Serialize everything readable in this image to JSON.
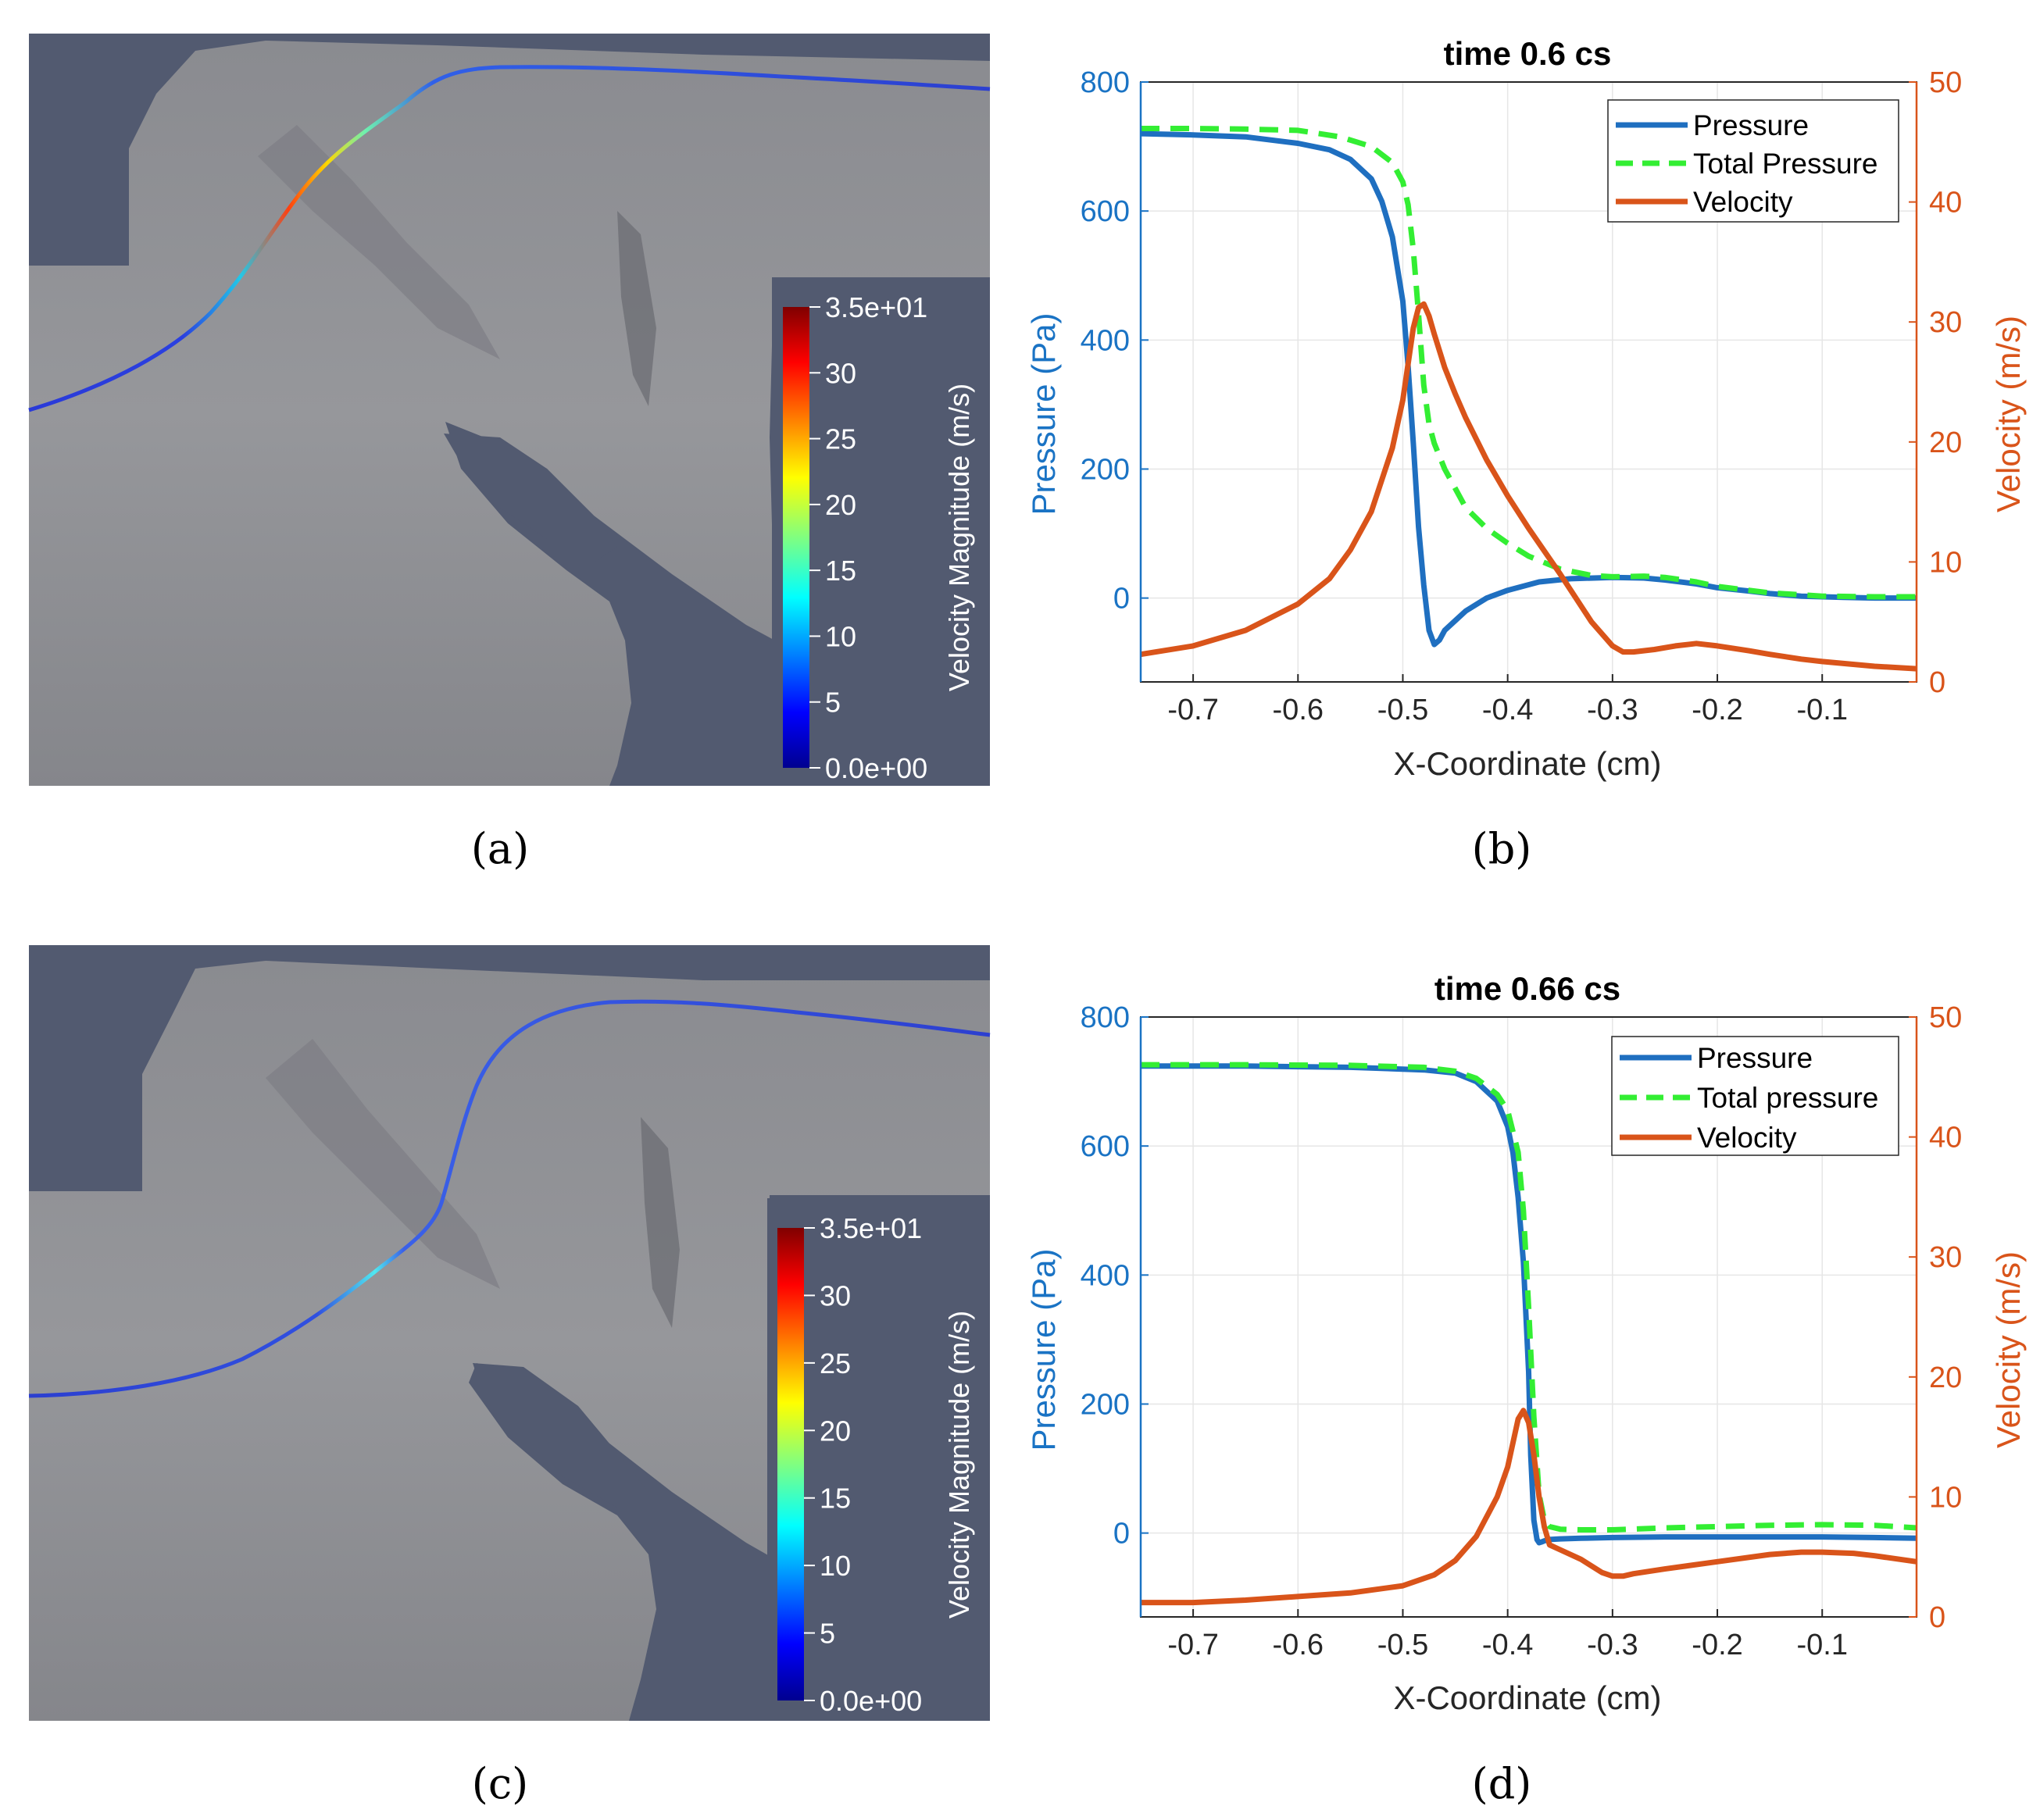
{
  "colors": {
    "pressure": "#1f6fc0",
    "total_pressure": "#33ee33",
    "velocity": "#d9541a",
    "left_axis": "#1a73c4",
    "right_axis": "#d9541a",
    "scene_bg": "#525a70",
    "mesh": "#8f9094"
  },
  "panels": [
    {
      "caption": "(a)",
      "colorbar": {
        "title": "Velocity Magnitude (m/s)",
        "labels": [
          "3.5e+01",
          "30",
          "25",
          "20",
          "15",
          "10",
          "5",
          "0.0e+00"
        ]
      }
    },
    {
      "caption": "(c)",
      "colorbar": {
        "title": "Velocity Magnitude (m/s)",
        "labels": [
          "3.5e+01",
          "30",
          "25",
          "20",
          "15",
          "10",
          "5",
          "0.0e+00"
        ]
      }
    }
  ],
  "chart_data": [
    {
      "type": "line",
      "caption": "(b)",
      "title": "time 0.6 cs",
      "xlabel": "X-Coordinate (cm)",
      "ylabel": "Pressure (Pa)",
      "y2label": "Velocity (m/s)",
      "xlim": [
        -0.75,
        -0.01
      ],
      "ylim": [
        -130,
        800
      ],
      "y2lim": [
        0,
        50
      ],
      "xticks": [
        -0.7,
        -0.6,
        -0.5,
        -0.4,
        -0.3,
        -0.2,
        -0.1
      ],
      "xtick_labels": [
        "-0.7",
        "-0.6",
        "-0.5",
        "-0.4",
        "-0.3",
        "-0.2",
        "-0.1"
      ],
      "yticks": [
        0,
        200,
        400,
        600,
        800
      ],
      "ytick_labels": [
        "0",
        "200",
        "400",
        "600",
        "800"
      ],
      "y2ticks": [
        0,
        10,
        20,
        30,
        40,
        50
      ],
      "y2tick_labels": [
        "0",
        "10",
        "20",
        "30",
        "40",
        "50"
      ],
      "grid": true,
      "legend": "top-right",
      "series": [
        {
          "name": "Pressure",
          "axis": "left",
          "style": "solid",
          "x": [
            -0.75,
            -0.7,
            -0.65,
            -0.6,
            -0.57,
            -0.55,
            -0.53,
            -0.52,
            -0.51,
            -0.5,
            -0.495,
            -0.49,
            -0.485,
            -0.48,
            -0.475,
            -0.47,
            -0.465,
            -0.46,
            -0.45,
            -0.44,
            -0.42,
            -0.4,
            -0.37,
            -0.34,
            -0.3,
            -0.27,
            -0.25,
            -0.22,
            -0.2,
            -0.17,
            -0.15,
            -0.12,
            -0.1,
            -0.08,
            -0.05,
            -0.01
          ],
          "y": [
            720,
            718,
            715,
            705,
            695,
            680,
            650,
            615,
            560,
            460,
            360,
            240,
            110,
            20,
            -50,
            -72,
            -65,
            -50,
            -35,
            -20,
            0,
            12,
            25,
            30,
            32,
            31,
            28,
            22,
            16,
            11,
            7,
            3,
            2,
            1,
            0,
            0
          ]
        },
        {
          "name": "Total Pressure",
          "axis": "left",
          "style": "dashed",
          "x": [
            -0.75,
            -0.7,
            -0.65,
            -0.6,
            -0.56,
            -0.53,
            -0.51,
            -0.5,
            -0.495,
            -0.49,
            -0.485,
            -0.48,
            -0.475,
            -0.47,
            -0.46,
            -0.45,
            -0.44,
            -0.42,
            -0.4,
            -0.38,
            -0.35,
            -0.32,
            -0.3,
            -0.27,
            -0.25,
            -0.22,
            -0.2,
            -0.17,
            -0.15,
            -0.12,
            -0.1,
            -0.05,
            -0.01
          ],
          "y": [
            728,
            728,
            727,
            725,
            715,
            700,
            675,
            645,
            610,
            540,
            440,
            330,
            270,
            240,
            200,
            170,
            140,
            108,
            85,
            65,
            45,
            35,
            33,
            34,
            32,
            25,
            18,
            12,
            8,
            5,
            3,
            2,
            2
          ]
        },
        {
          "name": "Velocity",
          "axis": "right",
          "style": "solid",
          "x": [
            -0.75,
            -0.7,
            -0.65,
            -0.6,
            -0.57,
            -0.55,
            -0.53,
            -0.51,
            -0.5,
            -0.495,
            -0.49,
            -0.485,
            -0.48,
            -0.475,
            -0.47,
            -0.46,
            -0.45,
            -0.44,
            -0.42,
            -0.4,
            -0.38,
            -0.35,
            -0.32,
            -0.3,
            -0.29,
            -0.28,
            -0.26,
            -0.24,
            -0.22,
            -0.2,
            -0.17,
            -0.15,
            -0.12,
            -0.1,
            -0.05,
            -0.01
          ],
          "y": [
            2.3,
            3.0,
            4.3,
            6.5,
            8.6,
            11.0,
            14.2,
            19.5,
            23.5,
            26.5,
            29.5,
            31.2,
            31.5,
            30.5,
            29.0,
            26.2,
            24.0,
            22.0,
            18.5,
            15.5,
            12.8,
            9.0,
            5.0,
            3.0,
            2.5,
            2.5,
            2.7,
            3.0,
            3.2,
            3.0,
            2.6,
            2.3,
            1.9,
            1.7,
            1.3,
            1.1
          ]
        }
      ]
    },
    {
      "type": "line",
      "caption": "(d)",
      "title": "time 0.66 cs",
      "xlabel": "X-Coordinate (cm)",
      "ylabel": "Pressure (Pa)",
      "y2label": "Velocity (m/s)",
      "xlim": [
        -0.75,
        -0.01
      ],
      "ylim": [
        -130,
        800
      ],
      "y2lim": [
        0,
        50
      ],
      "xticks": [
        -0.7,
        -0.6,
        -0.5,
        -0.4,
        -0.3,
        -0.2,
        -0.1
      ],
      "xtick_labels": [
        "-0.7",
        "-0.6",
        "-0.5",
        "-0.4",
        "-0.3",
        "-0.2",
        "-0.1"
      ],
      "yticks": [
        0,
        200,
        400,
        600,
        800
      ],
      "ytick_labels": [
        "0",
        "200",
        "400",
        "600",
        "800"
      ],
      "y2ticks": [
        0,
        10,
        20,
        30,
        40,
        50
      ],
      "y2tick_labels": [
        "0",
        "10",
        "20",
        "30",
        "40",
        "50"
      ],
      "grid": true,
      "legend": "top-right",
      "series": [
        {
          "name": "Pressure",
          "axis": "left",
          "style": "solid",
          "x": [
            -0.75,
            -0.65,
            -0.55,
            -0.48,
            -0.45,
            -0.43,
            -0.41,
            -0.4,
            -0.395,
            -0.39,
            -0.385,
            -0.38,
            -0.378,
            -0.375,
            -0.372,
            -0.37,
            -0.368,
            -0.365,
            -0.36,
            -0.35,
            -0.33,
            -0.3,
            -0.25,
            -0.2,
            -0.15,
            -0.1,
            -0.05,
            -0.01
          ],
          "y": [
            724,
            724,
            722,
            718,
            713,
            700,
            670,
            630,
            590,
            520,
            420,
            250,
            120,
            20,
            -10,
            -15,
            -14,
            -12,
            -10,
            -9,
            -8,
            -7,
            -6,
            -6,
            -6,
            -6,
            -7,
            -8
          ]
        },
        {
          "name": "Total pressure",
          "axis": "left",
          "style": "dashed",
          "x": [
            -0.75,
            -0.65,
            -0.55,
            -0.48,
            -0.45,
            -0.43,
            -0.41,
            -0.4,
            -0.39,
            -0.385,
            -0.38,
            -0.375,
            -0.37,
            -0.365,
            -0.36,
            -0.35,
            -0.33,
            -0.3,
            -0.25,
            -0.2,
            -0.15,
            -0.1,
            -0.05,
            -0.01
          ],
          "y": [
            726,
            726,
            725,
            722,
            716,
            705,
            680,
            655,
            590,
            500,
            350,
            180,
            60,
            20,
            10,
            6,
            5,
            5,
            8,
            10,
            12,
            13,
            12,
            8
          ]
        },
        {
          "name": "Velocity",
          "axis": "right",
          "style": "solid",
          "x": [
            -0.75,
            -0.7,
            -0.65,
            -0.6,
            -0.55,
            -0.5,
            -0.47,
            -0.45,
            -0.43,
            -0.41,
            -0.4,
            -0.395,
            -0.39,
            -0.385,
            -0.38,
            -0.375,
            -0.37,
            -0.365,
            -0.36,
            -0.35,
            -0.33,
            -0.31,
            -0.3,
            -0.29,
            -0.28,
            -0.25,
            -0.2,
            -0.15,
            -0.12,
            -0.1,
            -0.07,
            -0.05,
            -0.01
          ],
          "y": [
            1.2,
            1.2,
            1.4,
            1.7,
            2.0,
            2.6,
            3.5,
            4.7,
            6.7,
            10.0,
            12.5,
            14.5,
            16.5,
            17.2,
            16.2,
            13.5,
            10.0,
            7.5,
            6.0,
            5.6,
            4.8,
            3.7,
            3.4,
            3.4,
            3.6,
            4.0,
            4.6,
            5.2,
            5.4,
            5.4,
            5.3,
            5.1,
            4.6
          ]
        }
      ]
    }
  ]
}
